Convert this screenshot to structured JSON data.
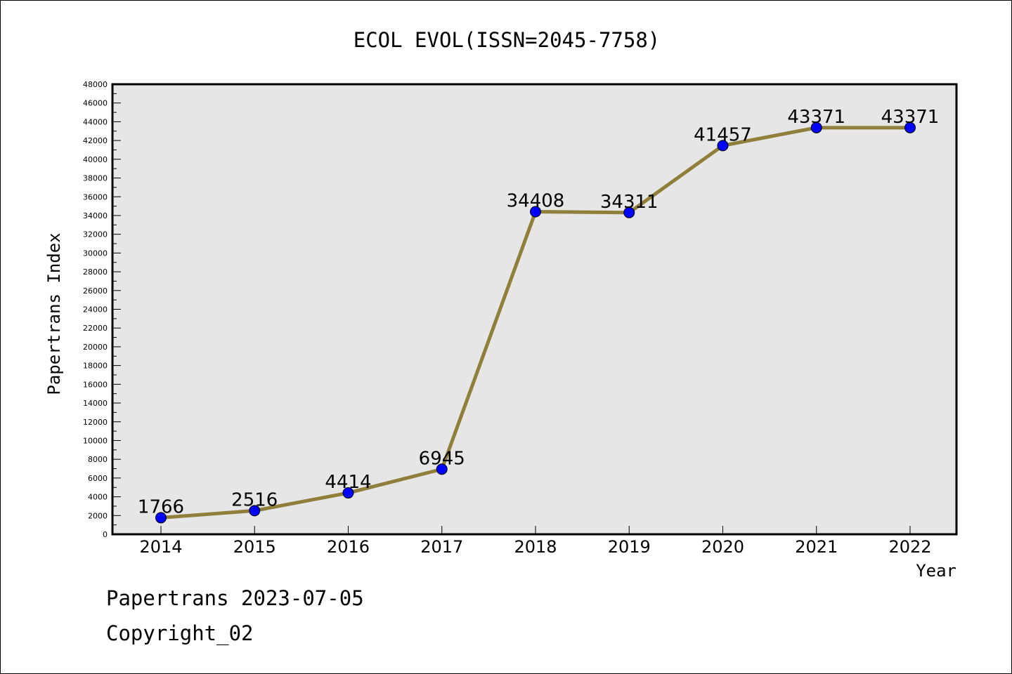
{
  "chart_data": {
    "type": "line",
    "title": "ECOL EVOL(ISSN=2045-7758)",
    "xlabel": "Year",
    "ylabel": "Papertrans Index",
    "categories": [
      "2014",
      "2015",
      "2016",
      "2017",
      "2018",
      "2019",
      "2020",
      "2021",
      "2022"
    ],
    "series": [
      {
        "values": [
          1766,
          2516,
          4414,
          6945,
          34408,
          34311,
          41457,
          43371,
          43371
        ]
      }
    ],
    "data_labels": [
      "1766",
      "2516",
      "4414",
      "6945",
      "34408",
      "34311",
      "41457",
      "43371",
      "43371"
    ],
    "ylim": [
      0,
      48000
    ],
    "yticks": [
      "0",
      "2000",
      "4000",
      "6000",
      "8000",
      "10000",
      "12000",
      "14000",
      "16000",
      "18000",
      "20000",
      "22000",
      "24000",
      "26000",
      "28000",
      "30000",
      "32000",
      "34000",
      "36000",
      "38000",
      "40000",
      "42000",
      "44000",
      "46000",
      "48000"
    ],
    "grid": false,
    "colors": {
      "line": "#8f7f3a",
      "marker": "#0000ff",
      "plot_background": "#e6e6e6"
    }
  },
  "footer": {
    "line1": "Papertrans 2023-07-05",
    "line2": "Copyright_02"
  }
}
